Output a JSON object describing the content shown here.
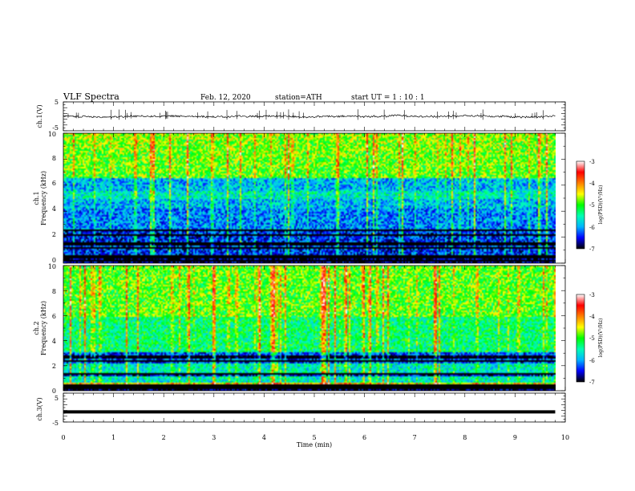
{
  "header": {
    "title": "VLF  Spectra",
    "date": "Feb. 12, 2020",
    "station": "station=ATH",
    "start_ut": "start  UT  =   1  : 10 : 1"
  },
  "chart_data": [
    {
      "type": "line",
      "panel": "ch1-waveform",
      "ylabel": "ch.1(V)",
      "yticks": [
        "5",
        "-5"
      ],
      "ylim": [
        -5,
        5
      ],
      "xlim": [
        0,
        10
      ],
      "description_values": {
        "baseline_V": 0,
        "noise_amplitude_V": 0.6,
        "spike_amplitude_V": 2.5
      }
    },
    {
      "type": "heatmap",
      "panel": "ch1-spectrogram",
      "ylabel_line1": "ch.1",
      "ylabel_line2": "Frequency  (kHz)",
      "yticks": [
        "0",
        "2",
        "4",
        "6",
        "8",
        "10"
      ],
      "ylim": [
        0,
        10
      ],
      "xlim": [
        0,
        9.8
      ],
      "colorbar_label": "log(PSD)(V²/Hz)",
      "colorbar_ticks": [
        "-3",
        "-4",
        "-5",
        "-6",
        "-7"
      ],
      "colorbar_range": [
        -7,
        -3
      ]
    },
    {
      "type": "heatmap",
      "panel": "ch2-spectrogram",
      "ylabel_line1": "ch.2",
      "ylabel_line2": "Frequency  (kHz)",
      "yticks": [
        "0",
        "2",
        "4",
        "6",
        "8",
        "10"
      ],
      "ylim": [
        0,
        10
      ],
      "xlim": [
        0,
        9.8
      ],
      "colorbar_label": "log(PSD)(V²/Hz)",
      "colorbar_ticks": [
        "-3",
        "-4",
        "-5",
        "-6",
        "-7"
      ],
      "colorbar_range": [
        -7,
        -3
      ]
    },
    {
      "type": "line",
      "panel": "ch3-waveform",
      "ylabel": "ch.3(V)",
      "yticks": [
        "5",
        "-5"
      ],
      "ylim": [
        -5,
        5
      ],
      "xlim": [
        0,
        10
      ],
      "description_values": {
        "baseline_V": -1.5
      }
    }
  ],
  "xaxis": {
    "label": "Time  (min)",
    "ticks": [
      "0",
      "1",
      "2",
      "3",
      "4",
      "5",
      "6",
      "7",
      "8",
      "9",
      "10"
    ],
    "range": [
      0,
      10
    ]
  },
  "colors": {
    "frame": "#000000",
    "colormap": [
      "#000000",
      "#0000ff",
      "#00b4ff",
      "#00ffb4",
      "#00ff00",
      "#ffff00",
      "#ff8000",
      "#ff0000",
      "#ffffff"
    ]
  }
}
